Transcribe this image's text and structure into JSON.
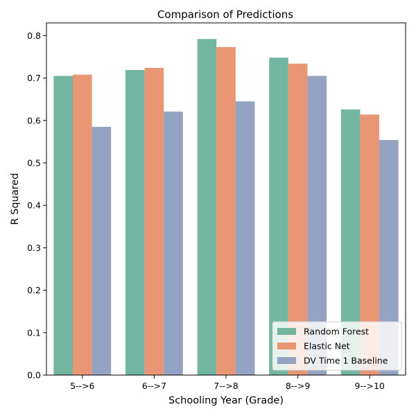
{
  "chart_data": {
    "type": "bar",
    "title": "Comparison of Predictions",
    "xlabel": "Schooling Year (Grade)",
    "ylabel": "R Squared",
    "categories": [
      "5-->6",
      "6-->7",
      "7-->8",
      "8-->9",
      "9-->10"
    ],
    "series": [
      {
        "name": "Random Forest",
        "color": "#72b6a1",
        "values": [
          0.705,
          0.719,
          0.792,
          0.748,
          0.626
        ]
      },
      {
        "name": "Elastic Net",
        "color": "#e99675",
        "values": [
          0.708,
          0.724,
          0.773,
          0.734,
          0.614
        ]
      },
      {
        "name": "DV Time 1 Baseline",
        "color": "#95a3c3",
        "values": [
          0.585,
          0.621,
          0.645,
          0.705,
          0.554
        ]
      }
    ],
    "ylim": [
      0,
      0.83
    ],
    "yticks": [
      "0.0",
      "0.1",
      "0.2",
      "0.3",
      "0.4",
      "0.5",
      "0.6",
      "0.7",
      "0.8"
    ],
    "grid": false,
    "legend_position": "lower-right"
  }
}
